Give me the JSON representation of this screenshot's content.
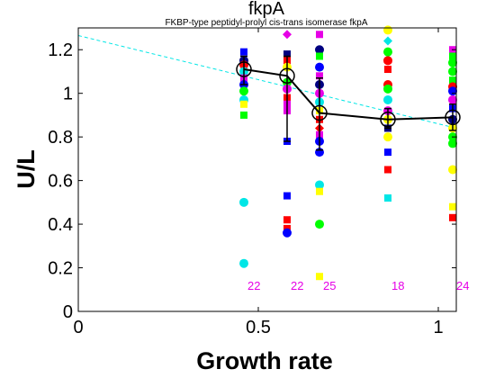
{
  "chart_data": {
    "type": "scatter",
    "title": "fkpA",
    "subtitle": "FKBP-type peptidyl-prolyl cis-trans isomerase fkpA",
    "xlabel": "Growth rate",
    "ylabel": "U/L",
    "xlim": [
      0,
      1.05
    ],
    "ylim": [
      0,
      1.3
    ],
    "xticks": [
      0,
      0.5,
      1
    ],
    "xtick_labels": [
      "0",
      "0.5",
      "1"
    ],
    "yticks": [
      0,
      0.2,
      0.4,
      0.6,
      0.8,
      1.0,
      1.2
    ],
    "ytick_labels": [
      "0",
      "0.2",
      "0.4",
      "0.6",
      "0.8",
      "1",
      "1.2"
    ],
    "grid": false,
    "trend_line": {
      "x": [
        0,
        1.05
      ],
      "y": [
        1.265,
        0.84
      ],
      "color": "#00e6e6",
      "style": "dashed"
    },
    "mean_series": {
      "x": [
        0.46,
        0.58,
        0.67,
        0.86,
        1.04
      ],
      "y": [
        1.11,
        1.08,
        0.91,
        0.88,
        0.89
      ],
      "yerr_low": [
        1.04,
        0.78,
        0.74,
        0.84,
        0.83
      ],
      "yerr_high": [
        1.17,
        1.17,
        1.07,
        0.93,
        0.95
      ],
      "color": "#000000"
    },
    "counts": [
      {
        "x": 0.46,
        "label": "22"
      },
      {
        "x": 0.58,
        "label": "22"
      },
      {
        "x": 0.67,
        "label": "25"
      },
      {
        "x": 0.86,
        "label": "18"
      },
      {
        "x": 1.04,
        "label": "24"
      }
    ],
    "points": [
      {
        "x": 0.46,
        "y": 1.19,
        "shape": "square",
        "color": "#0000ff"
      },
      {
        "x": 0.46,
        "y": 1.15,
        "shape": "circle",
        "color": "#000080"
      },
      {
        "x": 0.46,
        "y": 1.13,
        "shape": "circle",
        "color": "#ff0000"
      },
      {
        "x": 0.46,
        "y": 1.1,
        "shape": "circle",
        "color": "#00e6e6"
      },
      {
        "x": 0.46,
        "y": 1.07,
        "shape": "square",
        "color": "#e600e6"
      },
      {
        "x": 0.46,
        "y": 1.04,
        "shape": "circle",
        "color": "#0000ff"
      },
      {
        "x": 0.46,
        "y": 1.01,
        "shape": "circle",
        "color": "#00ff00"
      },
      {
        "x": 0.46,
        "y": 0.97,
        "shape": "circle",
        "color": "#00e6e6"
      },
      {
        "x": 0.46,
        "y": 0.95,
        "shape": "square",
        "color": "#ffff00"
      },
      {
        "x": 0.46,
        "y": 0.9,
        "shape": "square",
        "color": "#00ff00"
      },
      {
        "x": 0.46,
        "y": 0.5,
        "shape": "circle",
        "color": "#00e6e6"
      },
      {
        "x": 0.46,
        "y": 0.22,
        "shape": "circle",
        "color": "#00e6e6"
      },
      {
        "x": 0.58,
        "y": 1.27,
        "shape": "diamond",
        "color": "#e600e6"
      },
      {
        "x": 0.58,
        "y": 1.18,
        "shape": "square",
        "color": "#000080"
      },
      {
        "x": 0.58,
        "y": 1.15,
        "shape": "square",
        "color": "#ff0000"
      },
      {
        "x": 0.58,
        "y": 1.12,
        "shape": "circle",
        "color": "#ffff00"
      },
      {
        "x": 0.58,
        "y": 1.05,
        "shape": "circle",
        "color": "#00ff00"
      },
      {
        "x": 0.58,
        "y": 1.02,
        "shape": "circle",
        "color": "#e600e6"
      },
      {
        "x": 0.58,
        "y": 0.98,
        "shape": "square",
        "color": "#ff0000"
      },
      {
        "x": 0.58,
        "y": 0.95,
        "shape": "square",
        "color": "#e600e6"
      },
      {
        "x": 0.58,
        "y": 0.92,
        "shape": "square",
        "color": "#e600e6"
      },
      {
        "x": 0.58,
        "y": 0.78,
        "shape": "square",
        "color": "#0000ff"
      },
      {
        "x": 0.58,
        "y": 0.53,
        "shape": "square",
        "color": "#0000ff"
      },
      {
        "x": 0.58,
        "y": 0.42,
        "shape": "square",
        "color": "#ff0000"
      },
      {
        "x": 0.58,
        "y": 0.38,
        "shape": "square",
        "color": "#ff0000"
      },
      {
        "x": 0.58,
        "y": 0.36,
        "shape": "circle",
        "color": "#0000ff"
      },
      {
        "x": 0.67,
        "y": 1.27,
        "shape": "square",
        "color": "#e600e6"
      },
      {
        "x": 0.67,
        "y": 1.2,
        "shape": "circle",
        "color": "#000080"
      },
      {
        "x": 0.67,
        "y": 1.17,
        "shape": "square",
        "color": "#00ff00"
      },
      {
        "x": 0.67,
        "y": 1.12,
        "shape": "circle",
        "color": "#0000ff"
      },
      {
        "x": 0.67,
        "y": 1.08,
        "shape": "square",
        "color": "#e600e6"
      },
      {
        "x": 0.67,
        "y": 1.04,
        "shape": "circle",
        "color": "#000080"
      },
      {
        "x": 0.67,
        "y": 1.0,
        "shape": "circle",
        "color": "#e600e6"
      },
      {
        "x": 0.67,
        "y": 0.96,
        "shape": "circle",
        "color": "#00e6e6"
      },
      {
        "x": 0.67,
        "y": 0.92,
        "shape": "square",
        "color": "#ffff00"
      },
      {
        "x": 0.67,
        "y": 0.88,
        "shape": "square",
        "color": "#ff0000"
      },
      {
        "x": 0.67,
        "y": 0.84,
        "shape": "diamond",
        "color": "#ff0000"
      },
      {
        "x": 0.67,
        "y": 0.81,
        "shape": "square",
        "color": "#e600e6"
      },
      {
        "x": 0.67,
        "y": 0.78,
        "shape": "circle",
        "color": "#0000ff"
      },
      {
        "x": 0.67,
        "y": 0.73,
        "shape": "circle",
        "color": "#0000ff"
      },
      {
        "x": 0.67,
        "y": 0.58,
        "shape": "circle",
        "color": "#00e6e6"
      },
      {
        "x": 0.67,
        "y": 0.55,
        "shape": "square",
        "color": "#ffff00"
      },
      {
        "x": 0.67,
        "y": 0.4,
        "shape": "circle",
        "color": "#00ff00"
      },
      {
        "x": 0.67,
        "y": 0.16,
        "shape": "square",
        "color": "#ffff00"
      },
      {
        "x": 0.86,
        "y": 1.29,
        "shape": "circle",
        "color": "#ffff00"
      },
      {
        "x": 0.86,
        "y": 1.24,
        "shape": "diamond",
        "color": "#00e6e6"
      },
      {
        "x": 0.86,
        "y": 1.19,
        "shape": "circle",
        "color": "#00ff00"
      },
      {
        "x": 0.86,
        "y": 1.15,
        "shape": "circle",
        "color": "#ff0000"
      },
      {
        "x": 0.86,
        "y": 1.11,
        "shape": "square",
        "color": "#ff0000"
      },
      {
        "x": 0.86,
        "y": 1.04,
        "shape": "circle",
        "color": "#ff0000"
      },
      {
        "x": 0.86,
        "y": 1.02,
        "shape": "circle",
        "color": "#00ff00"
      },
      {
        "x": 0.86,
        "y": 0.97,
        "shape": "circle",
        "color": "#00e6e6"
      },
      {
        "x": 0.86,
        "y": 0.92,
        "shape": "circle",
        "color": "#e600e6"
      },
      {
        "x": 0.86,
        "y": 0.88,
        "shape": "circle",
        "color": "#ffff00"
      },
      {
        "x": 0.86,
        "y": 0.84,
        "shape": "square",
        "color": "#000080"
      },
      {
        "x": 0.86,
        "y": 0.8,
        "shape": "circle",
        "color": "#ffff00"
      },
      {
        "x": 0.86,
        "y": 0.73,
        "shape": "square",
        "color": "#0000ff"
      },
      {
        "x": 0.86,
        "y": 0.65,
        "shape": "square",
        "color": "#ff0000"
      },
      {
        "x": 0.86,
        "y": 0.52,
        "shape": "square",
        "color": "#00e6e6"
      },
      {
        "x": 1.04,
        "y": 1.2,
        "shape": "square",
        "color": "#e600e6"
      },
      {
        "x": 1.04,
        "y": 1.17,
        "shape": "square",
        "color": "#00ff00"
      },
      {
        "x": 1.04,
        "y": 1.14,
        "shape": "circle",
        "color": "#00ff00"
      },
      {
        "x": 1.04,
        "y": 1.1,
        "shape": "circle",
        "color": "#00ff00"
      },
      {
        "x": 1.04,
        "y": 1.06,
        "shape": "square",
        "color": "#00ff00"
      },
      {
        "x": 1.04,
        "y": 1.03,
        "shape": "circle",
        "color": "#ff0000"
      },
      {
        "x": 1.04,
        "y": 1.01,
        "shape": "circle",
        "color": "#0000ff"
      },
      {
        "x": 1.04,
        "y": 0.97,
        "shape": "circle",
        "color": "#e600e6"
      },
      {
        "x": 1.04,
        "y": 0.93,
        "shape": "square",
        "color": "#0000ff"
      },
      {
        "x": 1.04,
        "y": 0.88,
        "shape": "circle",
        "color": "#000080"
      },
      {
        "x": 1.04,
        "y": 0.84,
        "shape": "circle",
        "color": "#ffff00"
      },
      {
        "x": 1.04,
        "y": 0.8,
        "shape": "circle",
        "color": "#00ff00"
      },
      {
        "x": 1.04,
        "y": 0.77,
        "shape": "circle",
        "color": "#00ff00"
      },
      {
        "x": 1.04,
        "y": 0.65,
        "shape": "circle",
        "color": "#ffff00"
      },
      {
        "x": 1.04,
        "y": 0.48,
        "shape": "square",
        "color": "#ffff00"
      },
      {
        "x": 1.04,
        "y": 0.43,
        "shape": "square",
        "color": "#ff0000"
      }
    ]
  }
}
